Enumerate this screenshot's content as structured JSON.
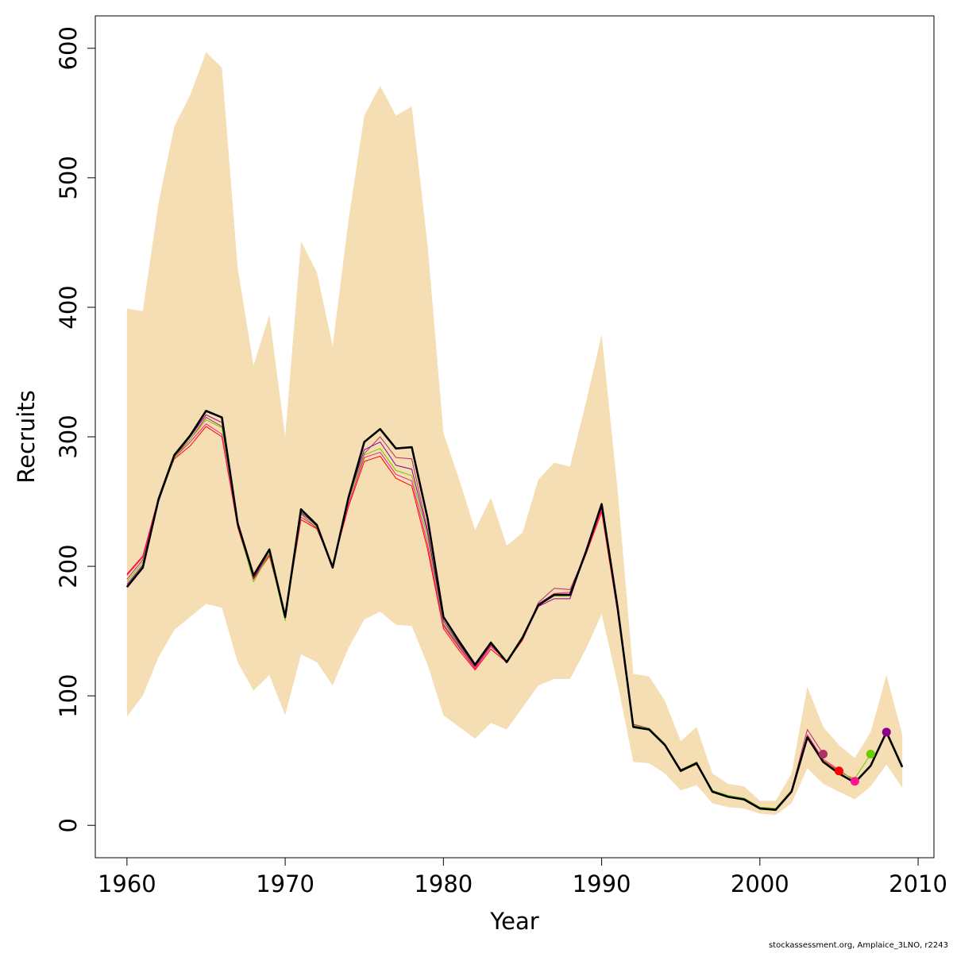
{
  "chart_data": {
    "type": "line",
    "title": "",
    "xlabel": "Year",
    "ylabel": "Recruits",
    "xlim": [
      1958,
      2011
    ],
    "ylim": [
      -25,
      625
    ],
    "xticks": [
      1960,
      1970,
      1980,
      1990,
      2000,
      2010
    ],
    "yticks": [
      0,
      100,
      200,
      300,
      400,
      500,
      600
    ],
    "colors": {
      "band": "#f5deb3",
      "main": "#000000",
      "retros": [
        "#b03060",
        "#ff0000",
        "#ff1493",
        "#66cd00",
        "#8b008b"
      ]
    },
    "band": {
      "x": [
        1960,
        1961,
        1962,
        1963,
        1964,
        1965,
        1966,
        1967,
        1968,
        1969,
        1970,
        1971,
        1972,
        1973,
        1974,
        1975,
        1976,
        1977,
        1978,
        1979,
        1980,
        1981,
        1982,
        1983,
        1984,
        1985,
        1986,
        1987,
        1988,
        1989,
        1990,
        1991,
        1992,
        1993,
        1994,
        1995,
        1996,
        1997,
        1998,
        1999,
        2000,
        2001,
        2002,
        2003,
        2004,
        2005,
        2006,
        2007,
        2008,
        2009
      ],
      "upper": [
        399,
        397,
        481,
        540,
        564,
        597,
        585,
        430,
        355,
        394,
        300,
        451,
        427,
        370,
        467,
        548,
        571,
        548,
        555,
        448,
        303,
        267,
        228,
        253,
        216,
        226,
        267,
        280,
        277,
        326,
        379,
        260,
        117,
        115,
        96,
        65,
        76,
        40,
        32,
        30,
        19,
        19,
        40,
        107,
        76,
        62,
        52,
        72,
        116,
        70
      ],
      "lower": [
        84,
        100,
        130,
        151,
        161,
        171,
        168,
        126,
        104,
        116,
        85,
        132,
        126,
        108,
        137,
        159,
        165,
        155,
        154,
        124,
        85,
        76,
        67,
        79,
        74,
        91,
        108,
        113,
        113,
        136,
        163,
        110,
        49,
        48,
        40,
        27,
        31,
        17,
        14,
        13,
        9,
        8,
        17,
        44,
        32,
        26,
        20,
        30,
        47,
        29
      ]
    },
    "x": [
      1960,
      1961,
      1962,
      1963,
      1964,
      1965,
      1966,
      1967,
      1968,
      1969,
      1970,
      1971,
      1972,
      1973,
      1974,
      1975,
      1976,
      1977,
      1978,
      1979,
      1980,
      1981,
      1982,
      1983,
      1984,
      1985,
      1986,
      1987,
      1988,
      1989,
      1990,
      1991,
      1992,
      1993,
      1994,
      1995,
      1996,
      1997,
      1998,
      1999,
      2000,
      2001,
      2002,
      2003,
      2004,
      2005,
      2006,
      2007,
      2008,
      2009
    ],
    "series": [
      {
        "x": [
          1960,
          1961,
          1962,
          1963,
          1964,
          1965,
          1966,
          1967,
          1968,
          1969,
          1970,
          1971,
          1972,
          1973,
          1974,
          1975,
          1976,
          1977,
          1978,
          1979,
          1980,
          1981,
          1982,
          1983,
          1984,
          1985,
          1986,
          1987,
          1988,
          1989,
          1990,
          1991,
          1992,
          1993,
          1994,
          1995,
          1996,
          1997,
          1998,
          1999,
          2000,
          2001,
          2002,
          2003,
          2004
        ],
        "values": [
          190,
          205,
          252,
          285,
          298,
          315,
          308,
          231,
          192,
          210,
          160,
          241,
          229,
          200,
          251,
          287,
          300,
          284,
          283,
          228,
          155,
          138,
          122,
          139,
          127,
          144,
          172,
          183,
          182,
          210,
          245,
          168,
          78,
          75,
          63,
          43,
          48,
          27,
          23,
          21,
          14,
          13,
          27,
          74,
          55
        ],
        "color": "#b03060",
        "lw": 1,
        "marker": "end"
      },
      {
        "x": [
          1960,
          1961,
          1962,
          1963,
          1964,
          1965,
          1966,
          1967,
          1968,
          1969,
          1970,
          1971,
          1972,
          1973,
          1974,
          1975,
          1976,
          1977,
          1978,
          1979,
          1980,
          1981,
          1982,
          1983,
          1984,
          1985,
          1986,
          1987,
          1988,
          1989,
          1990,
          1991,
          1992,
          1993,
          1994,
          1995,
          1996,
          1997,
          1998,
          1999,
          2000,
          2001,
          2002,
          2003,
          2004,
          2005
        ],
        "values": [
          194,
          208,
          253,
          283,
          293,
          308,
          300,
          230,
          190,
          208,
          161,
          236,
          229,
          201,
          246,
          281,
          285,
          268,
          262,
          213,
          152,
          135,
          120,
          136,
          126,
          143,
          170,
          178,
          178,
          209,
          242,
          165,
          76,
          74,
          62,
          42,
          47,
          26,
          22,
          20,
          13,
          12,
          26,
          68,
          50,
          42
        ],
        "color": "#ff0000",
        "lw": 1,
        "marker": "end"
      },
      {
        "x": [
          1960,
          1961,
          1962,
          1963,
          1964,
          1965,
          1966,
          1967,
          1968,
          1969,
          1970,
          1971,
          1972,
          1973,
          1974,
          1975,
          1976,
          1977,
          1978,
          1979,
          1980,
          1981,
          1982,
          1983,
          1984,
          1985,
          1986,
          1987,
          1988,
          1989,
          1990,
          1991,
          1992,
          1993,
          1994,
          1995,
          1996,
          1997,
          1998,
          1999,
          2000,
          2001,
          2002,
          2003,
          2004,
          2005,
          2006
        ],
        "values": [
          193,
          207,
          252,
          284,
          296,
          310,
          302,
          231,
          191,
          209,
          161,
          238,
          230,
          201,
          248,
          284,
          288,
          271,
          266,
          217,
          154,
          137,
          121,
          138,
          127,
          144,
          171,
          179,
          180,
          210,
          244,
          166,
          77,
          74,
          62,
          43,
          48,
          26,
          22,
          20,
          13,
          12,
          27,
          70,
          51,
          43,
          34
        ],
        "color": "#ff1493",
        "lw": 1,
        "marker": "end"
      },
      {
        "x": [
          1960,
          1961,
          1962,
          1963,
          1964,
          1965,
          1966,
          1967,
          1968,
          1969,
          1970,
          1971,
          1972,
          1973,
          1974,
          1975,
          1976,
          1977,
          1978,
          1979,
          1980,
          1981,
          1982,
          1983,
          1984,
          1985,
          1986,
          1987,
          1988,
          1989,
          1990,
          1991,
          1992,
          1993,
          1994,
          1995,
          1996,
          1997,
          1998,
          1999,
          2000,
          2001,
          2002,
          2003,
          2004,
          2005,
          2006,
          2007
        ],
        "values": [
          188,
          203,
          250,
          284,
          298,
          313,
          307,
          232,
          188,
          210,
          158,
          240,
          230,
          201,
          251,
          286,
          291,
          274,
          270,
          222,
          156,
          139,
          123,
          142,
          127,
          146,
          170,
          177,
          177,
          212,
          249,
          170,
          77,
          75,
          63,
          43,
          49,
          27,
          23,
          21,
          14,
          13,
          27,
          68,
          50,
          41,
          36,
          55
        ],
        "color": "#66cd00",
        "lw": 1,
        "marker": "end"
      },
      {
        "x": [
          1960,
          1961,
          1962,
          1963,
          1964,
          1965,
          1966,
          1967,
          1968,
          1969,
          1970,
          1971,
          1972,
          1973,
          1974,
          1975,
          1976,
          1977,
          1978,
          1979,
          1980,
          1981,
          1982,
          1983,
          1984,
          1985,
          1986,
          1987,
          1988,
          1989,
          1990,
          1991,
          1992,
          1993,
          1994,
          1995,
          1996,
          1997,
          1998,
          1999,
          2000,
          2001,
          2002,
          2003,
          2004,
          2005,
          2006,
          2007,
          2008
        ],
        "values": [
          186,
          201,
          250,
          285,
          300,
          317,
          311,
          232,
          191,
          212,
          160,
          242,
          231,
          200,
          253,
          290,
          296,
          278,
          275,
          226,
          158,
          140,
          123,
          140,
          126,
          145,
          169,
          175,
          175,
          211,
          247,
          169,
          76,
          74,
          62,
          43,
          48,
          26,
          22,
          20,
          13,
          12,
          26,
          67,
          49,
          40,
          33,
          46,
          72
        ],
        "color": "#8b008b",
        "lw": 1,
        "marker": "end"
      },
      {
        "x": [
          1960,
          1961,
          1962,
          1963,
          1964,
          1965,
          1966,
          1967,
          1968,
          1969,
          1970,
          1971,
          1972,
          1973,
          1974,
          1975,
          1976,
          1977,
          1978,
          1979,
          1980,
          1981,
          1982,
          1983,
          1984,
          1985,
          1986,
          1987,
          1988,
          1989,
          1990,
          1991,
          1992,
          1993,
          1994,
          1995,
          1996,
          1997,
          1998,
          1999,
          2000,
          2001,
          2002,
          2003,
          2004,
          2005,
          2006,
          2007,
          2008,
          2009
        ],
        "values": [
          184,
          199,
          252,
          286,
          301,
          320,
          315,
          233,
          193,
          213,
          161,
          244,
          232,
          199,
          253,
          296,
          306,
          291,
          292,
          237,
          161,
          142,
          124,
          141,
          126,
          145,
          170,
          178,
          178,
          211,
          248,
          169,
          76,
          74,
          62,
          42,
          48,
          26,
          22,
          20,
          13,
          12,
          26,
          68,
          49,
          40,
          33,
          46,
          72,
          45
        ],
        "color": "#000000",
        "lw": 2.6,
        "marker": "none"
      }
    ]
  },
  "credit": "stockassessment.org, Amplaice_3LNO, r2243"
}
